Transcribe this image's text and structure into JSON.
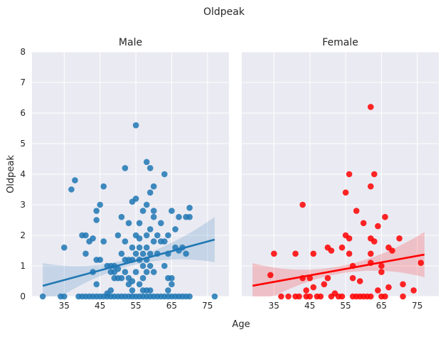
{
  "suptitle": "Oldpeak",
  "xlabel": "Age",
  "ylabel": "Oldpeak",
  "colors": {
    "panel_bg": "#eaeaf2",
    "grid": "#ffffff",
    "male": "#1f77b4",
    "female": "#ff0000"
  },
  "chart_data": [
    {
      "type": "scatter",
      "title": "Male",
      "xlabel": "",
      "ylabel": "Oldpeak",
      "xticks": [
        35,
        45,
        55,
        65,
        75
      ],
      "yticks": [
        0,
        1,
        2,
        3,
        4,
        5,
        6,
        7,
        8
      ],
      "xlim": [
        26,
        81
      ],
      "ylim": [
        0,
        8
      ],
      "regression": {
        "x": [
          29,
          77
        ],
        "y": [
          0.35,
          1.86
        ],
        "ci": true
      },
      "points": [
        [
          29,
          0
        ],
        [
          34,
          0
        ],
        [
          35,
          0
        ],
        [
          35,
          1.6
        ],
        [
          37,
          3.5
        ],
        [
          38,
          3.8
        ],
        [
          39,
          0
        ],
        [
          40,
          2
        ],
        [
          40,
          0
        ],
        [
          41,
          1.4
        ],
        [
          41,
          2
        ],
        [
          41,
          0
        ],
        [
          42,
          1.8
        ],
        [
          42,
          0
        ],
        [
          43,
          0.8
        ],
        [
          43,
          1.9
        ],
        [
          43,
          0
        ],
        [
          44,
          2.5
        ],
        [
          44,
          1.2
        ],
        [
          44,
          2.8
        ],
        [
          44,
          0.4
        ],
        [
          44,
          0
        ],
        [
          45,
          3
        ],
        [
          45,
          1.2
        ],
        [
          45,
          0
        ],
        [
          46,
          0
        ],
        [
          46,
          1.8
        ],
        [
          46,
          3.6
        ],
        [
          47,
          0.1
        ],
        [
          47,
          1
        ],
        [
          47,
          0
        ],
        [
          48,
          0.2
        ],
        [
          48,
          0.8
        ],
        [
          48,
          1
        ],
        [
          48,
          0
        ],
        [
          49,
          0.6
        ],
        [
          49,
          0.8
        ],
        [
          49,
          1
        ],
        [
          49,
          0
        ],
        [
          50,
          0.9
        ],
        [
          50,
          0
        ],
        [
          50,
          2
        ],
        [
          50,
          0.6
        ],
        [
          51,
          2.6
        ],
        [
          51,
          1.4
        ],
        [
          51,
          0.6
        ],
        [
          51,
          0
        ],
        [
          52,
          1.2
        ],
        [
          52,
          0.8
        ],
        [
          52,
          4.2
        ],
        [
          52,
          1.8
        ],
        [
          52,
          0
        ],
        [
          53,
          2.4
        ],
        [
          53,
          1.2
        ],
        [
          53,
          0.6
        ],
        [
          53,
          0.4
        ],
        [
          53,
          0
        ],
        [
          54,
          3.1
        ],
        [
          54,
          1.6
        ],
        [
          54,
          1.2
        ],
        [
          54,
          0.2
        ],
        [
          54,
          0
        ],
        [
          54,
          0.5
        ],
        [
          55,
          3.2
        ],
        [
          55,
          1.4
        ],
        [
          55,
          2
        ],
        [
          55,
          0.8
        ],
        [
          55,
          0
        ],
        [
          55,
          5.6
        ],
        [
          56,
          1.9
        ],
        [
          56,
          1.6
        ],
        [
          56,
          1.2
        ],
        [
          56,
          0.4
        ],
        [
          56,
          2.4
        ],
        [
          56,
          0
        ],
        [
          57,
          2.8
        ],
        [
          57,
          1.4
        ],
        [
          57,
          0.6
        ],
        [
          57,
          0.2
        ],
        [
          57,
          0
        ],
        [
          57,
          1
        ],
        [
          58,
          4.4
        ],
        [
          58,
          2
        ],
        [
          58,
          1.6
        ],
        [
          58,
          1.2
        ],
        [
          58,
          0.8
        ],
        [
          58,
          3
        ],
        [
          58,
          0.2
        ],
        [
          58,
          0
        ],
        [
          59,
          4.2
        ],
        [
          59,
          3.4
        ],
        [
          59,
          2.2
        ],
        [
          59,
          1.4
        ],
        [
          59,
          0.2
        ],
        [
          59,
          0
        ],
        [
          59,
          1
        ],
        [
          60,
          3.6
        ],
        [
          60,
          2.8
        ],
        [
          60,
          1.8
        ],
        [
          60,
          0.8
        ],
        [
          60,
          0
        ],
        [
          60,
          2.6
        ],
        [
          61,
          2
        ],
        [
          61,
          1.4
        ],
        [
          61,
          0
        ],
        [
          62,
          2.4
        ],
        [
          62,
          1.8
        ],
        [
          62,
          0
        ],
        [
          63,
          4
        ],
        [
          63,
          1.8
        ],
        [
          63,
          1
        ],
        [
          63,
          0
        ],
        [
          64,
          2
        ],
        [
          64,
          1.4
        ],
        [
          64,
          0.6
        ],
        [
          64,
          0.2
        ],
        [
          64,
          0
        ],
        [
          65,
          2.8
        ],
        [
          65,
          0.6
        ],
        [
          65,
          0.4
        ],
        [
          65,
          0
        ],
        [
          66,
          1.6
        ],
        [
          66,
          2.2
        ],
        [
          66,
          0
        ],
        [
          67,
          2.6
        ],
        [
          67,
          1.5
        ],
        [
          67,
          0
        ],
        [
          68,
          1.6
        ],
        [
          68,
          0
        ],
        [
          69,
          2.6
        ],
        [
          69,
          0
        ],
        [
          69,
          1.4
        ],
        [
          70,
          2.9
        ],
        [
          70,
          2.6
        ],
        [
          70,
          0
        ],
        [
          77,
          0
        ]
      ]
    },
    {
      "type": "scatter",
      "title": "Female",
      "xlabel": "",
      "ylabel": "",
      "xticks": [
        35,
        45,
        55,
        65,
        75
      ],
      "yticks": [
        0,
        1,
        2,
        3,
        4,
        5,
        6,
        7,
        8
      ],
      "xlim": [
        26,
        81
      ],
      "ylim": [
        0,
        8
      ],
      "regression": {
        "x": [
          29,
          77
        ],
        "y": [
          0.35,
          1.37
        ],
        "ci": true
      },
      "points": [
        [
          34,
          0.7
        ],
        [
          35,
          1.4
        ],
        [
          37,
          0
        ],
        [
          39,
          0
        ],
        [
          41,
          0
        ],
        [
          41,
          1.4
        ],
        [
          42,
          0
        ],
        [
          43,
          3
        ],
        [
          43,
          0.6
        ],
        [
          44,
          0.2
        ],
        [
          44,
          0
        ],
        [
          45,
          0.6
        ],
        [
          45,
          0
        ],
        [
          46,
          1.4
        ],
        [
          46,
          0.3
        ],
        [
          47,
          0
        ],
        [
          48,
          0
        ],
        [
          49,
          0.4
        ],
        [
          50,
          1.6
        ],
        [
          50,
          0.6
        ],
        [
          51,
          1.5
        ],
        [
          51,
          0
        ],
        [
          52,
          0.1
        ],
        [
          53,
          0
        ],
        [
          54,
          1.6
        ],
        [
          54,
          0
        ],
        [
          55,
          2
        ],
        [
          55,
          3.4
        ],
        [
          56,
          4
        ],
        [
          56,
          1.4
        ],
        [
          56,
          1.9
        ],
        [
          57,
          0.6
        ],
        [
          57,
          1
        ],
        [
          57,
          0
        ],
        [
          58,
          2.8
        ],
        [
          58,
          0
        ],
        [
          59,
          0
        ],
        [
          59,
          0.5
        ],
        [
          60,
          2.4
        ],
        [
          60,
          0
        ],
        [
          61,
          0
        ],
        [
          62,
          6.2
        ],
        [
          62,
          3.6
        ],
        [
          62,
          1.9
        ],
        [
          62,
          1.4
        ],
        [
          62,
          1.1
        ],
        [
          62,
          0
        ],
        [
          63,
          4
        ],
        [
          63,
          1.8
        ],
        [
          64,
          2.3
        ],
        [
          64,
          0.2
        ],
        [
          65,
          0.8
        ],
        [
          65,
          1
        ],
        [
          65,
          0
        ],
        [
          66,
          2.6
        ],
        [
          66,
          0
        ],
        [
          67,
          1.6
        ],
        [
          67,
          0.3
        ],
        [
          68,
          1.5
        ],
        [
          70,
          1.9
        ],
        [
          71,
          0
        ],
        [
          71,
          0.4
        ],
        [
          74,
          0.2
        ],
        [
          76,
          1.1
        ]
      ]
    }
  ]
}
